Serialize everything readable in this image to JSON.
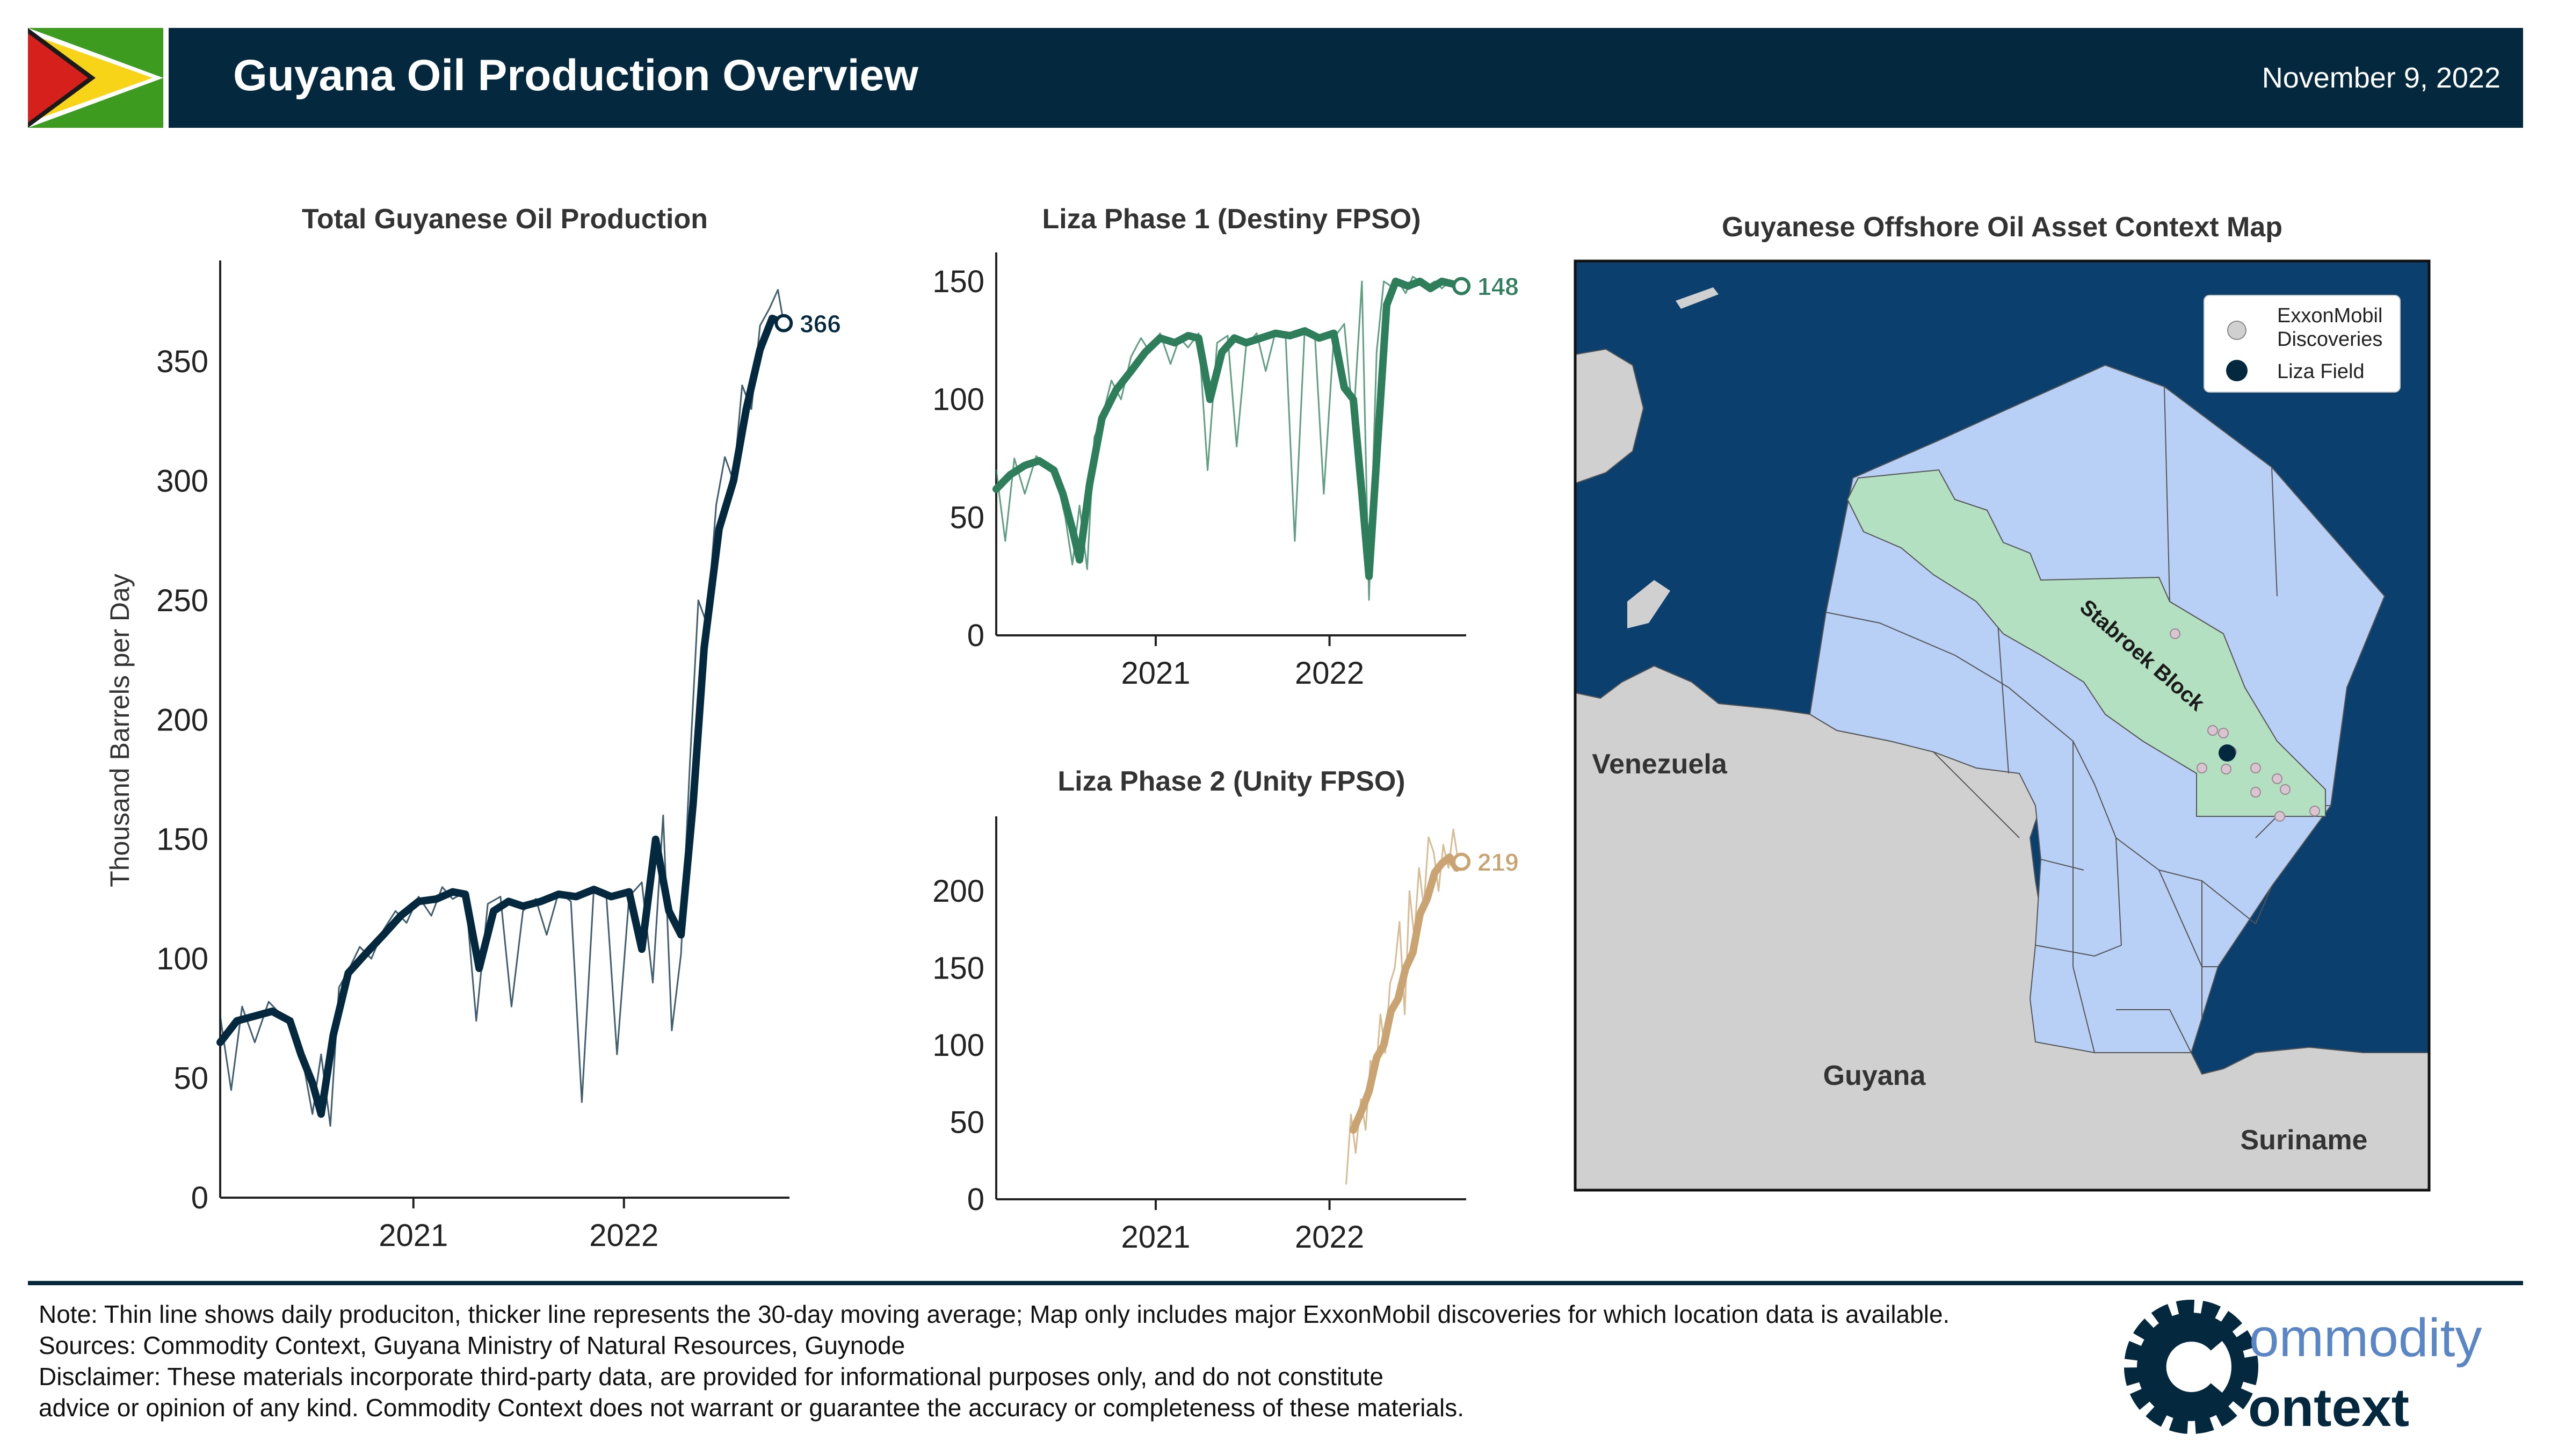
{
  "header": {
    "title": "Guyana Oil Production Overview",
    "date": "November 9, 2022"
  },
  "colors": {
    "navy": "#04293f",
    "phase1_green": "#2e7d5b",
    "phase2_tan": "#c9a472",
    "ocean": "#0b3f6e",
    "land": "#d0d0d0",
    "blocks": "#b8d0f5",
    "stabroek": "#b2e0c0"
  },
  "chart_data": [
    {
      "type": "line",
      "title": "Total Guyanese Oil Production",
      "ylabel": "Thousand Barrels per Day",
      "xlabel": "",
      "x_ticks": [
        "2021",
        "2022"
      ],
      "y_ticks": [
        "0",
        "50",
        "100",
        "150",
        "200",
        "250",
        "300",
        "350"
      ],
      "ylim": [
        0,
        390
      ],
      "xlim": [
        "2020-02-01",
        "2022-10-15"
      ],
      "grid": false,
      "end_label": "366",
      "series": [
        {
          "style": "daily",
          "x": [
            "2020-02-01",
            "2020-02-20",
            "2020-03-10",
            "2020-04-01",
            "2020-04-25",
            "2020-05-15",
            "2020-06-05",
            "2020-06-25",
            "2020-07-10",
            "2020-07-25",
            "2020-08-10",
            "2020-08-25",
            "2020-09-10",
            "2020-09-30",
            "2020-10-20",
            "2020-11-10",
            "2020-12-01",
            "2020-12-20",
            "2021-01-10",
            "2021-02-01",
            "2021-02-20",
            "2021-03-10",
            "2021-04-01",
            "2021-04-20",
            "2021-05-10",
            "2021-06-01",
            "2021-06-20",
            "2021-07-10",
            "2021-08-01",
            "2021-08-20",
            "2021-09-10",
            "2021-10-01",
            "2021-10-20",
            "2021-11-10",
            "2021-12-01",
            "2021-12-20",
            "2022-01-10",
            "2022-02-01",
            "2022-02-20",
            "2022-03-10",
            "2022-03-25",
            "2022-04-10",
            "2022-04-25",
            "2022-05-10",
            "2022-05-25",
            "2022-06-10",
            "2022-06-25",
            "2022-07-10",
            "2022-07-25",
            "2022-08-10",
            "2022-08-25",
            "2022-09-10",
            "2022-09-25",
            "2022-10-05"
          ],
          "values": [
            76,
            45,
            80,
            65,
            82,
            77,
            73,
            55,
            35,
            60,
            30,
            88,
            95,
            105,
            100,
            112,
            120,
            115,
            126,
            118,
            130,
            125,
            128,
            74,
            123,
            126,
            80,
            120,
            125,
            110,
            128,
            124,
            40,
            130,
            128,
            60,
            126,
            132,
            90,
            160,
            70,
            102,
            180,
            250,
            240,
            290,
            310,
            300,
            340,
            330,
            365,
            372,
            380,
            366
          ]
        },
        {
          "style": "avg30",
          "x": [
            "2020-02-01",
            "2020-03-01",
            "2020-04-01",
            "2020-05-01",
            "2020-06-01",
            "2020-06-20",
            "2020-07-10",
            "2020-07-25",
            "2020-08-15",
            "2020-09-10",
            "2020-10-10",
            "2020-11-10",
            "2020-12-10",
            "2021-01-10",
            "2021-02-10",
            "2021-03-10",
            "2021-04-01",
            "2021-04-25",
            "2021-05-20",
            "2021-06-15",
            "2021-07-10",
            "2021-08-10",
            "2021-09-10",
            "2021-10-10",
            "2021-11-10",
            "2021-12-10",
            "2022-01-10",
            "2022-02-01",
            "2022-02-25",
            "2022-03-20",
            "2022-04-10",
            "2022-05-01",
            "2022-05-20",
            "2022-06-15",
            "2022-07-10",
            "2022-08-01",
            "2022-08-25",
            "2022-09-15",
            "2022-10-05"
          ],
          "values": [
            65,
            74,
            76,
            78,
            74,
            60,
            48,
            35,
            68,
            94,
            102,
            110,
            118,
            124,
            125,
            128,
            127,
            96,
            120,
            124,
            122,
            124,
            127,
            126,
            129,
            126,
            128,
            104,
            150,
            120,
            110,
            165,
            230,
            280,
            300,
            330,
            355,
            368,
            366
          ]
        }
      ]
    },
    {
      "type": "line",
      "title": "Liza Phase 1 (Destiny FPSO)",
      "xlabel": "",
      "ylabel": "",
      "x_ticks": [
        "2021",
        "2022"
      ],
      "y_ticks": [
        "0",
        "50",
        "100",
        "150"
      ],
      "ylim": [
        0,
        160
      ],
      "xlim": [
        "2020-02-01",
        "2022-10-15"
      ],
      "grid": false,
      "end_label": "148",
      "series": [
        {
          "style": "daily",
          "x": [
            "2020-02-01",
            "2020-02-20",
            "2020-03-10",
            "2020-04-01",
            "2020-04-25",
            "2020-05-15",
            "2020-06-05",
            "2020-06-25",
            "2020-07-10",
            "2020-07-25",
            "2020-08-10",
            "2020-08-25",
            "2020-09-10",
            "2020-09-30",
            "2020-10-20",
            "2020-11-10",
            "2020-12-01",
            "2020-12-20",
            "2021-01-10",
            "2021-02-01",
            "2021-02-20",
            "2021-03-10",
            "2021-04-01",
            "2021-04-20",
            "2021-05-10",
            "2021-06-01",
            "2021-06-20",
            "2021-07-10",
            "2021-08-01",
            "2021-08-20",
            "2021-09-10",
            "2021-10-01",
            "2021-10-20",
            "2021-11-10",
            "2021-12-01",
            "2021-12-20",
            "2022-01-10",
            "2022-02-01",
            "2022-02-20",
            "2022-03-10",
            "2022-03-25",
            "2022-04-10",
            "2022-04-25",
            "2022-05-10",
            "2022-05-25",
            "2022-06-10",
            "2022-06-25",
            "2022-07-10",
            "2022-07-25",
            "2022-08-10",
            "2022-08-25",
            "2022-09-10",
            "2022-09-25",
            "2022-10-05"
          ],
          "values": [
            70,
            40,
            75,
            60,
            76,
            72,
            68,
            50,
            30,
            55,
            28,
            84,
            92,
            108,
            100,
            118,
            126,
            120,
            128,
            115,
            126,
            122,
            128,
            70,
            124,
            127,
            80,
            123,
            128,
            112,
            129,
            126,
            40,
            130,
            128,
            60,
            126,
            132,
            90,
            150,
            15,
            120,
            150,
            148,
            150,
            145,
            152,
            150,
            148,
            150,
            147,
            150,
            149,
            148
          ]
        },
        {
          "style": "avg30",
          "x": [
            "2020-02-01",
            "2020-03-01",
            "2020-04-01",
            "2020-05-01",
            "2020-06-01",
            "2020-06-20",
            "2020-07-10",
            "2020-07-25",
            "2020-08-15",
            "2020-09-10",
            "2020-10-10",
            "2020-11-10",
            "2020-12-10",
            "2021-01-10",
            "2021-02-10",
            "2021-03-10",
            "2021-04-01",
            "2021-04-25",
            "2021-05-20",
            "2021-06-15",
            "2021-07-10",
            "2021-08-10",
            "2021-09-10",
            "2021-10-10",
            "2021-11-10",
            "2021-12-10",
            "2022-01-10",
            "2022-02-01",
            "2022-02-20",
            "2022-03-10",
            "2022-03-25",
            "2022-04-10",
            "2022-05-01",
            "2022-05-20",
            "2022-06-15",
            "2022-07-10",
            "2022-08-01",
            "2022-08-25",
            "2022-09-15",
            "2022-10-05"
          ],
          "values": [
            62,
            68,
            72,
            74,
            70,
            60,
            45,
            32,
            64,
            92,
            104,
            112,
            120,
            126,
            124,
            127,
            126,
            100,
            120,
            126,
            124,
            126,
            128,
            127,
            129,
            126,
            128,
            105,
            100,
            60,
            25,
            75,
            140,
            150,
            148,
            150,
            147,
            150,
            149,
            148
          ]
        }
      ]
    },
    {
      "type": "line",
      "title": "Liza Phase 2 (Unity FPSO)",
      "xlabel": "",
      "ylabel": "",
      "x_ticks": [
        "2021",
        "2022"
      ],
      "y_ticks": [
        "0",
        "50",
        "100",
        "150",
        "200"
      ],
      "ylim": [
        0,
        245
      ],
      "xlim": [
        "2020-02-01",
        "2022-10-15"
      ],
      "grid": false,
      "end_label": "219",
      "series": [
        {
          "style": "daily",
          "x": [
            "2022-02-05",
            "2022-02-15",
            "2022-02-25",
            "2022-03-08",
            "2022-03-18",
            "2022-03-28",
            "2022-04-08",
            "2022-04-18",
            "2022-04-28",
            "2022-05-08",
            "2022-05-18",
            "2022-05-28",
            "2022-06-08",
            "2022-06-18",
            "2022-06-28",
            "2022-07-08",
            "2022-07-18",
            "2022-07-28",
            "2022-08-08",
            "2022-08-18",
            "2022-08-28",
            "2022-09-08",
            "2022-09-18",
            "2022-09-28",
            "2022-10-05"
          ],
          "values": [
            10,
            55,
            30,
            65,
            45,
            90,
            80,
            120,
            95,
            140,
            150,
            180,
            120,
            200,
            170,
            215,
            190,
            235,
            225,
            200,
            230,
            215,
            240,
            220,
            219
          ]
        },
        {
          "style": "avg30",
          "x": [
            "2022-02-20",
            "2022-03-10",
            "2022-03-25",
            "2022-04-10",
            "2022-04-25",
            "2022-05-10",
            "2022-05-25",
            "2022-06-10",
            "2022-06-25",
            "2022-07-10",
            "2022-07-25",
            "2022-08-10",
            "2022-08-25",
            "2022-09-10",
            "2022-09-25",
            "2022-10-05"
          ],
          "values": [
            45,
            58,
            70,
            92,
            100,
            122,
            130,
            150,
            160,
            185,
            195,
            212,
            218,
            222,
            215,
            219
          ]
        }
      ]
    }
  ],
  "map": {
    "title": "Guyanese Offshore Oil Asset Context Map",
    "legend": [
      {
        "label_lines": [
          "ExxonMobil",
          "Discoveries"
        ]
      },
      {
        "label_lines": [
          "Liza Field"
        ]
      }
    ],
    "block_label": "Stabroek Block",
    "countries": [
      {
        "label": "Venezuela"
      },
      {
        "label": "Guyana"
      },
      {
        "label": "Suriname"
      }
    ]
  },
  "footer": {
    "lines": [
      "Note: Thin line shows daily produciton, thicker line represents the 30-day moving average; Map only includes major ExxonMobil discoveries for which location data is available.",
      "Sources: Commodity Context, Guyana Ministry of Natural Resources, Guynode",
      "Disclaimer: These materials incorporate third-party data, are provided for informational purposes only, and do not constitute",
      "advice or opinion of any kind. Commodity Context does not warrant or guarantee the accuracy or completeness of these materials."
    ],
    "logo_top": "ommodity",
    "logo_bottom": "ontext"
  }
}
